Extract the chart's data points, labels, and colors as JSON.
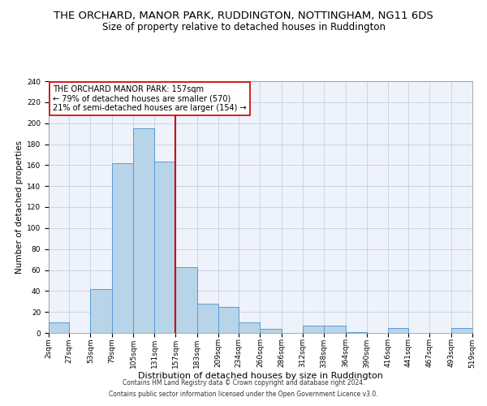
{
  "title": "THE ORCHARD, MANOR PARK, RUDDINGTON, NOTTINGHAM, NG11 6DS",
  "subtitle": "Size of property relative to detached houses in Ruddington",
  "xlabel": "Distribution of detached houses by size in Ruddington",
  "ylabel": "Number of detached properties",
  "bin_edges": [
    2,
    27,
    53,
    79,
    105,
    131,
    157,
    183,
    209,
    234,
    260,
    286,
    312,
    338,
    364,
    390,
    416,
    441,
    467,
    493,
    519
  ],
  "bar_heights": [
    10,
    0,
    42,
    162,
    195,
    163,
    63,
    28,
    25,
    10,
    4,
    0,
    7,
    7,
    1,
    0,
    5,
    0,
    0,
    5
  ],
  "bar_color": "#b8d4e8",
  "bar_edge_color": "#5b9bd5",
  "vline_x": 157,
  "vline_color": "#cc0000",
  "ylim": [
    0,
    240
  ],
  "yticks": [
    0,
    20,
    40,
    60,
    80,
    100,
    120,
    140,
    160,
    180,
    200,
    220,
    240
  ],
  "annotation_title": "THE ORCHARD MANOR PARK: 157sqm",
  "annotation_line1": "← 79% of detached houses are smaller (570)",
  "annotation_line2": "21% of semi-detached houses are larger (154) →",
  "annotation_box_color": "#ffffff",
  "annotation_box_edge": "#cc0000",
  "footer_line1": "Contains HM Land Registry data © Crown copyright and database right 2024.",
  "footer_line2": "Contains public sector information licensed under the Open Government Licence v3.0.",
  "bg_color": "#eef2fb",
  "grid_color": "#c0c8d8",
  "title_fontsize": 9.5,
  "subtitle_fontsize": 8.5,
  "xlabel_fontsize": 8,
  "ylabel_fontsize": 7.5,
  "tick_fontsize": 6.5,
  "annotation_fontsize": 7,
  "footer_fontsize": 5.5
}
